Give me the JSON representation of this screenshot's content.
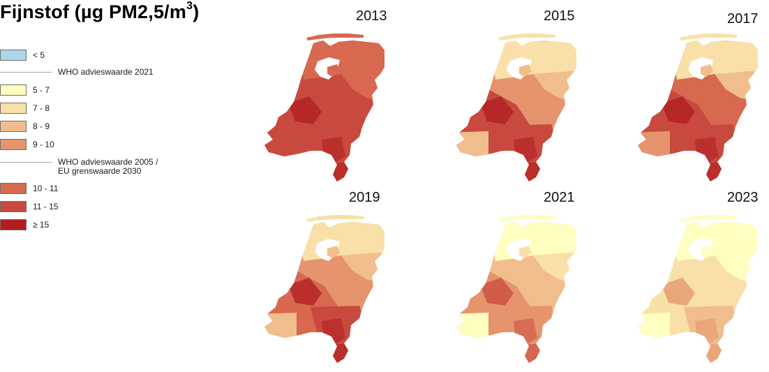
{
  "title": {
    "main": "Fijnstof (µg PM2,5/m",
    "sup": "3",
    "close": ")"
  },
  "legend": {
    "items": [
      {
        "label": "< 5",
        "color": "#aed6e8",
        "kind": "box"
      },
      {
        "label": "WHO advieswaarde 2021",
        "kind": "line"
      },
      {
        "label": "5 - 7",
        "color": "#fefec0",
        "kind": "box"
      },
      {
        "label": "7 - 8",
        "color": "#f8e0a8",
        "kind": "box"
      },
      {
        "label": "8 - 9",
        "color": "#f2bd8c",
        "kind": "box"
      },
      {
        "label": "9 - 10",
        "color": "#e5946e",
        "kind": "box"
      },
      {
        "label": "WHO advieswaarde 2005 /",
        "label2": "EU grenswaarde 2030",
        "kind": "line"
      },
      {
        "label": "10 - 11",
        "color": "#d8684f",
        "kind": "box"
      },
      {
        "label": "11 - 15",
        "color": "#c84a3e",
        "kind": "box"
      },
      {
        "label": "≥ 15",
        "color": "#b01c20",
        "kind": "box"
      }
    ]
  },
  "maps": [
    {
      "year": "2013",
      "north": "#d8684f",
      "ne": "#d8684f",
      "east": "#c84a3e",
      "southwest": "#c84a3e",
      "south": "#c84a3e",
      "hot": "#b01c20",
      "coast": "#c84a3e"
    },
    {
      "year": "2015",
      "north": "#f8e0a8",
      "ne": "#f2bd8c",
      "east": "#e5946e",
      "southwest": "#c84a3e",
      "south": "#c84a3e",
      "hot": "#b01c20",
      "coast": "#f2bd8c"
    },
    {
      "year": "2017",
      "north": "#f8e0a8",
      "ne": "#f2bd8c",
      "east": "#d8684f",
      "southwest": "#c84a3e",
      "south": "#c84a3e",
      "hot": "#b01c20",
      "coast": "#e5946e"
    },
    {
      "year": "2019",
      "north": "#f8e0a8",
      "ne": "#f2bd8c",
      "east": "#e5946e",
      "southwest": "#d8684f",
      "south": "#c84a3e",
      "hot": "#b01c20",
      "coast": "#f2bd8c"
    },
    {
      "year": "2021",
      "north": "#fefec0",
      "ne": "#f8e0a8",
      "east": "#f2bd8c",
      "southwest": "#e5946e",
      "south": "#e5946e",
      "hot": "#c84a3e",
      "coast": "#fefec0"
    },
    {
      "year": "2023",
      "north": "#fefec0",
      "ne": "#fefec0",
      "east": "#f8e0a8",
      "southwest": "#f8e0a8",
      "south": "#f2bd8c",
      "hot": "#e5946e",
      "coast": "#fefec0"
    }
  ]
}
